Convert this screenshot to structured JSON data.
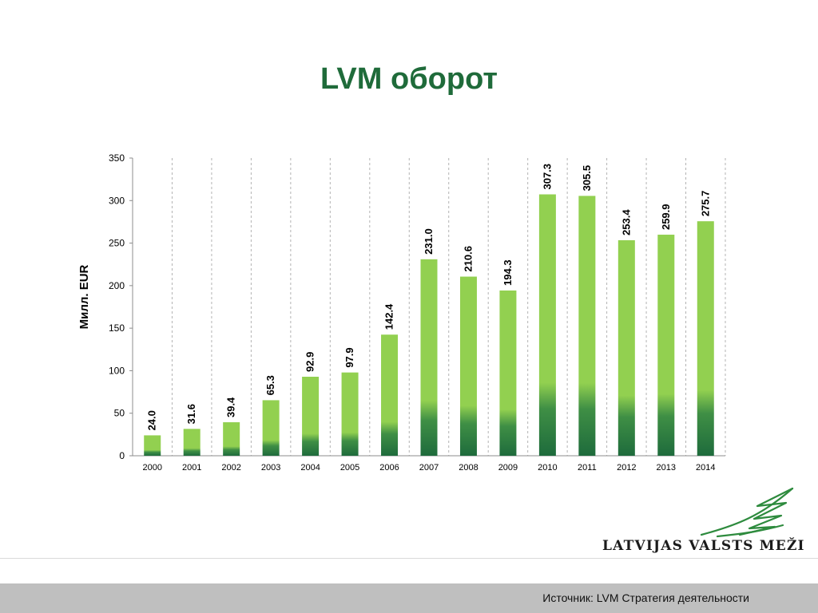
{
  "page": {
    "title": "LVM оборот",
    "footer_source": "Источник: LVM Стратегия деятельности",
    "logo_text": "LATVIJAS VALSTS MEŽI"
  },
  "colors": {
    "title": "#1f6b3a",
    "bar_light": "#92d050",
    "bar_dark": "#1e6b3c",
    "footer_bar": "#bfbfbf"
  },
  "chart_data": {
    "type": "bar",
    "title": "",
    "xlabel": "",
    "ylabel": "Милл. EUR",
    "categories": [
      "2000",
      "2001",
      "2002",
      "2003",
      "2004",
      "2005",
      "2006",
      "2007",
      "2008",
      "2009",
      "2010",
      "2011",
      "2012",
      "2013",
      "2014"
    ],
    "values": [
      24.0,
      31.6,
      39.4,
      65.3,
      92.9,
      97.9,
      142.4,
      231.0,
      210.6,
      194.3,
      307.3,
      305.5,
      253.4,
      259.9,
      275.7
    ],
    "data_labels": [
      "24.0",
      "31.6",
      "39.4",
      "65.3",
      "92.9",
      "97.9",
      "142.4",
      "231.0",
      "210.6",
      "194.3",
      "307.3",
      "305.5",
      "253.4",
      "259.9",
      "275.7"
    ],
    "ylim": [
      0,
      350
    ],
    "yticks": [
      0,
      50,
      100,
      150,
      200,
      250,
      300,
      350
    ],
    "grid": "vertical-dashed",
    "legend": "none"
  }
}
